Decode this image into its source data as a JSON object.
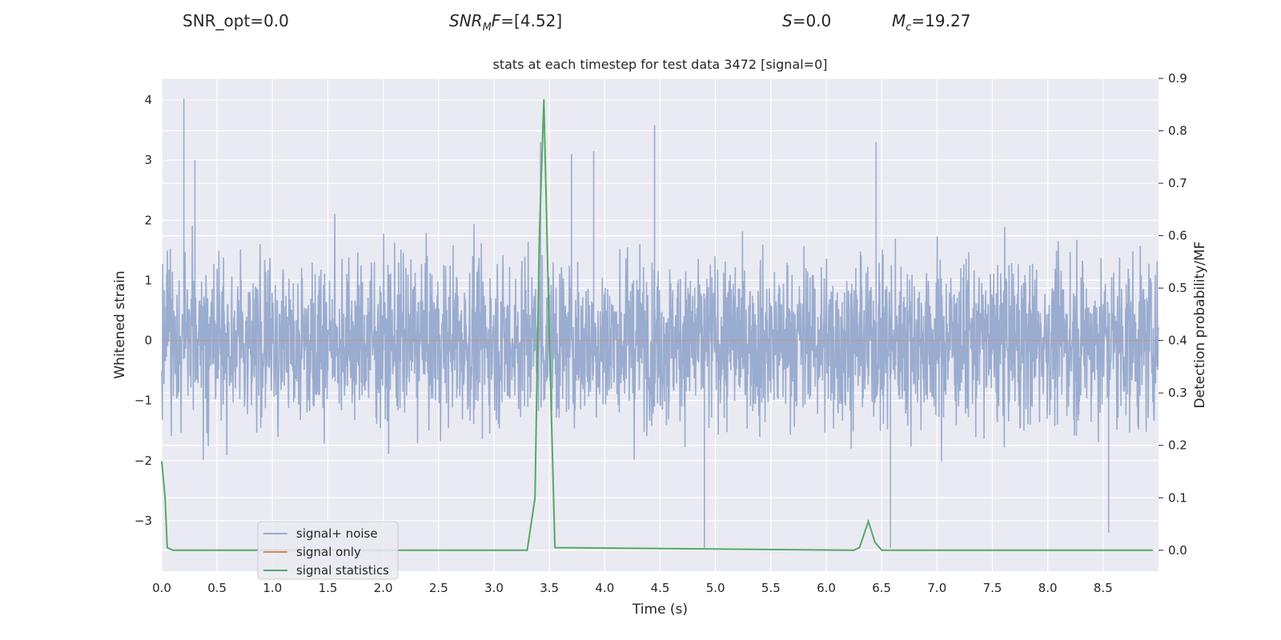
{
  "header": {
    "snr_opt": "SNR_opt=0.0",
    "snr_mf_base": "SNR",
    "snr_mf_sub": "M",
    "snr_mf_rest": "F=[4.52]",
    "s_label": "S",
    "s_value": "=0.0",
    "mc_base": "M",
    "mc_sub": "c",
    "mc_value": "=19.27"
  },
  "colors": {
    "background": "#eaeaf2",
    "grid": "#ffffff",
    "signal_noise": "#9aaccf",
    "signal_only": "#dd8452",
    "signal_statistics": "#55a868"
  },
  "chart_data": {
    "type": "line",
    "title": "stats at each timestep for test data 3472 [signal=0]",
    "xlabel": "Time (s)",
    "ylabel": "Whitened strain",
    "y2label": "Detection probability/MF",
    "xlim": [
      0.0,
      9.0
    ],
    "ylim": [
      -3.84,
      4.36
    ],
    "y2lim": [
      -0.04,
      0.9
    ],
    "xticks": [
      "0.0",
      "0.5",
      "1.0",
      "1.5",
      "2.0",
      "2.5",
      "3.0",
      "3.5",
      "4.0",
      "4.5",
      "5.0",
      "5.5",
      "6.0",
      "6.5",
      "7.0",
      "7.5",
      "8.0",
      "8.5"
    ],
    "yticks": [
      "4",
      "3",
      "2",
      "1",
      "0",
      "−1",
      "−2",
      "−3"
    ],
    "y2ticks": [
      "0.9",
      "0.8",
      "0.7",
      "0.6",
      "0.5",
      "0.4",
      "0.3",
      "0.2",
      "0.1",
      "0.0"
    ],
    "grid": true,
    "legend": {
      "placement": "lower-left",
      "entries": [
        "signal+ noise",
        "signal only",
        "signal statistics"
      ]
    },
    "series": [
      {
        "name": "signal+ noise",
        "axis": "left",
        "description_values": "dense whitened strain noise, mostly within ±1.7, spikes up to about 4.0 near t=0.2 s and down to about −3.5",
        "peaks": [
          {
            "x": 0.2,
            "y": 4.02
          },
          {
            "x": 0.3,
            "y": 3.0
          },
          {
            "x": 3.42,
            "y": 3.3
          },
          {
            "x": 3.7,
            "y": 3.1
          },
          {
            "x": 3.9,
            "y": 3.15
          },
          {
            "x": 4.45,
            "y": 3.58
          },
          {
            "x": 6.45,
            "y": 3.3
          },
          {
            "x": 4.9,
            "y": -3.45
          },
          {
            "x": 6.58,
            "y": -3.45
          },
          {
            "x": 8.55,
            "y": -3.2
          }
        ]
      },
      {
        "name": "signal only",
        "axis": "left",
        "x": [
          0.0,
          9.0
        ],
        "y": [
          0.0,
          0.0
        ]
      },
      {
        "name": "signal statistics",
        "axis": "right",
        "x": [
          0.0,
          0.03,
          0.05,
          0.1,
          3.3,
          3.37,
          3.41,
          3.45,
          3.5,
          3.55,
          6.25,
          6.3,
          6.38,
          6.44,
          6.5,
          8.95
        ],
        "y": [
          0.17,
          0.1,
          0.005,
          0.0,
          0.0,
          0.1,
          0.6,
          0.86,
          0.4,
          0.005,
          0.0,
          0.005,
          0.055,
          0.015,
          0.0,
          0.0
        ]
      }
    ]
  }
}
